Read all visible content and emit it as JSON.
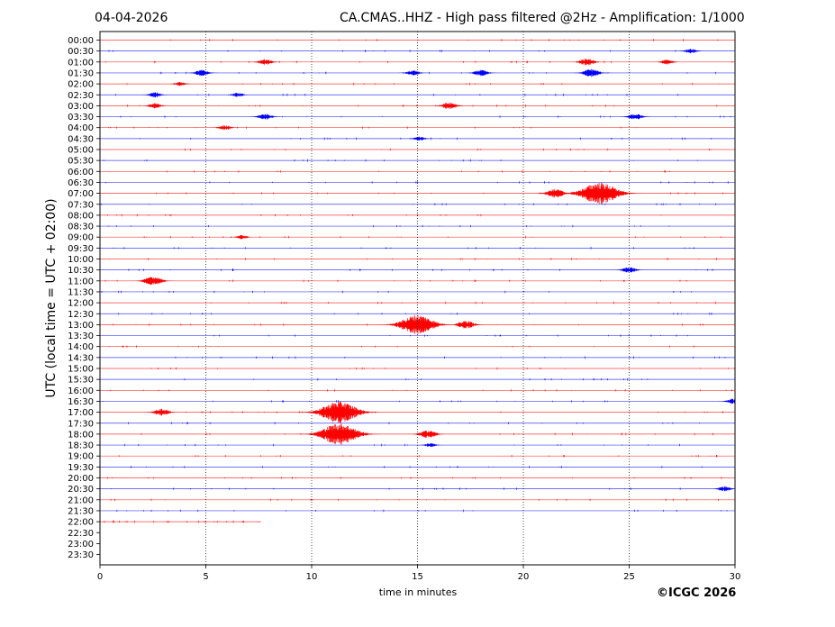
{
  "header": {
    "date": "04-04-2026",
    "title": "CA.CMAS..HHZ - High pass filtered @2Hz - Amplification: 1/1000"
  },
  "footer": {
    "copyright": "©ICGC 2026"
  },
  "chart_data": {
    "type": "line",
    "title": "CA.CMAS..HHZ - High pass filtered @2Hz - Amplification: 1/1000",
    "xlabel": "time in minutes",
    "ylabel": "UTC (local time = UTC + 02:00)",
    "xlim": [
      0,
      30
    ],
    "x_ticks": [
      0,
      5,
      10,
      15,
      20,
      25,
      30
    ],
    "x_tick_labels": [
      "0",
      "5",
      "10",
      "15",
      "20",
      "25",
      "30"
    ],
    "grid": "vertical dotted at x ticks",
    "row_labels": [
      "00:00",
      "00:30",
      "01:00",
      "01:30",
      "02:00",
      "02:30",
      "03:00",
      "03:30",
      "04:00",
      "04:30",
      "05:00",
      "05:30",
      "06:00",
      "06:30",
      "07:00",
      "07:30",
      "08:00",
      "08:30",
      "09:00",
      "09:30",
      "10:00",
      "10:30",
      "11:00",
      "11:30",
      "12:00",
      "12:30",
      "13:00",
      "13:30",
      "14:00",
      "14:30",
      "15:00",
      "15:30",
      "16:00",
      "16:30",
      "17:00",
      "17:30",
      "18:00",
      "18:30",
      "19:00",
      "19:30",
      "20:00",
      "20:30",
      "21:00",
      "21:30",
      "22:00",
      "22:30",
      "23:00",
      "23:30"
    ],
    "trace_colors": [
      "#ff0000",
      "#0000ff"
    ],
    "last_trace_row": "22:00",
    "last_trace_end_minute": 7.6,
    "events": [
      {
        "row": "00:30",
        "minute": 27.9,
        "amplitude": 0.15
      },
      {
        "row": "01:00",
        "minute": 7.8,
        "amplitude": 0.2
      },
      {
        "row": "01:00",
        "minute": 23.0,
        "amplitude": 0.25
      },
      {
        "row": "01:00",
        "minute": 26.8,
        "amplitude": 0.15
      },
      {
        "row": "01:30",
        "minute": 4.8,
        "amplitude": 0.2
      },
      {
        "row": "01:30",
        "minute": 14.8,
        "amplitude": 0.15
      },
      {
        "row": "01:30",
        "minute": 18.0,
        "amplitude": 0.2
      },
      {
        "row": "01:30",
        "minute": 23.2,
        "amplitude": 0.3
      },
      {
        "row": "02:00",
        "minute": 3.8,
        "amplitude": 0.1
      },
      {
        "row": "02:30",
        "minute": 2.6,
        "amplitude": 0.15
      },
      {
        "row": "02:30",
        "minute": 6.5,
        "amplitude": 0.1
      },
      {
        "row": "03:00",
        "minute": 2.6,
        "amplitude": 0.15
      },
      {
        "row": "03:00",
        "minute": 16.5,
        "amplitude": 0.25
      },
      {
        "row": "03:30",
        "minute": 7.8,
        "amplitude": 0.2
      },
      {
        "row": "03:30",
        "minute": 25.3,
        "amplitude": 0.2
      },
      {
        "row": "04:00",
        "minute": 5.9,
        "amplitude": 0.15
      },
      {
        "row": "04:30",
        "minute": 15.1,
        "amplitude": 0.1
      },
      {
        "row": "07:00",
        "minute": 21.5,
        "amplitude": 0.35
      },
      {
        "row": "07:00",
        "minute": 23.6,
        "amplitude": 1.0
      },
      {
        "row": "09:00",
        "minute": 6.7,
        "amplitude": 0.1
      },
      {
        "row": "10:30",
        "minute": 25.0,
        "amplitude": 0.2
      },
      {
        "row": "11:00",
        "minute": 2.5,
        "amplitude": 0.35
      },
      {
        "row": "13:00",
        "minute": 15.0,
        "amplitude": 0.9
      },
      {
        "row": "13:00",
        "minute": 17.3,
        "amplitude": 0.3
      },
      {
        "row": "16:30",
        "minute": 29.9,
        "amplitude": 0.15
      },
      {
        "row": "17:00",
        "minute": 2.9,
        "amplitude": 0.25
      },
      {
        "row": "17:00",
        "minute": 11.3,
        "amplitude": 1.0
      },
      {
        "row": "18:00",
        "minute": 11.3,
        "amplitude": 1.0
      },
      {
        "row": "18:00",
        "minute": 15.5,
        "amplitude": 0.3
      },
      {
        "row": "18:30",
        "minute": 15.6,
        "amplitude": 0.1
      },
      {
        "row": "20:30",
        "minute": 29.5,
        "amplitude": 0.15
      }
    ]
  }
}
